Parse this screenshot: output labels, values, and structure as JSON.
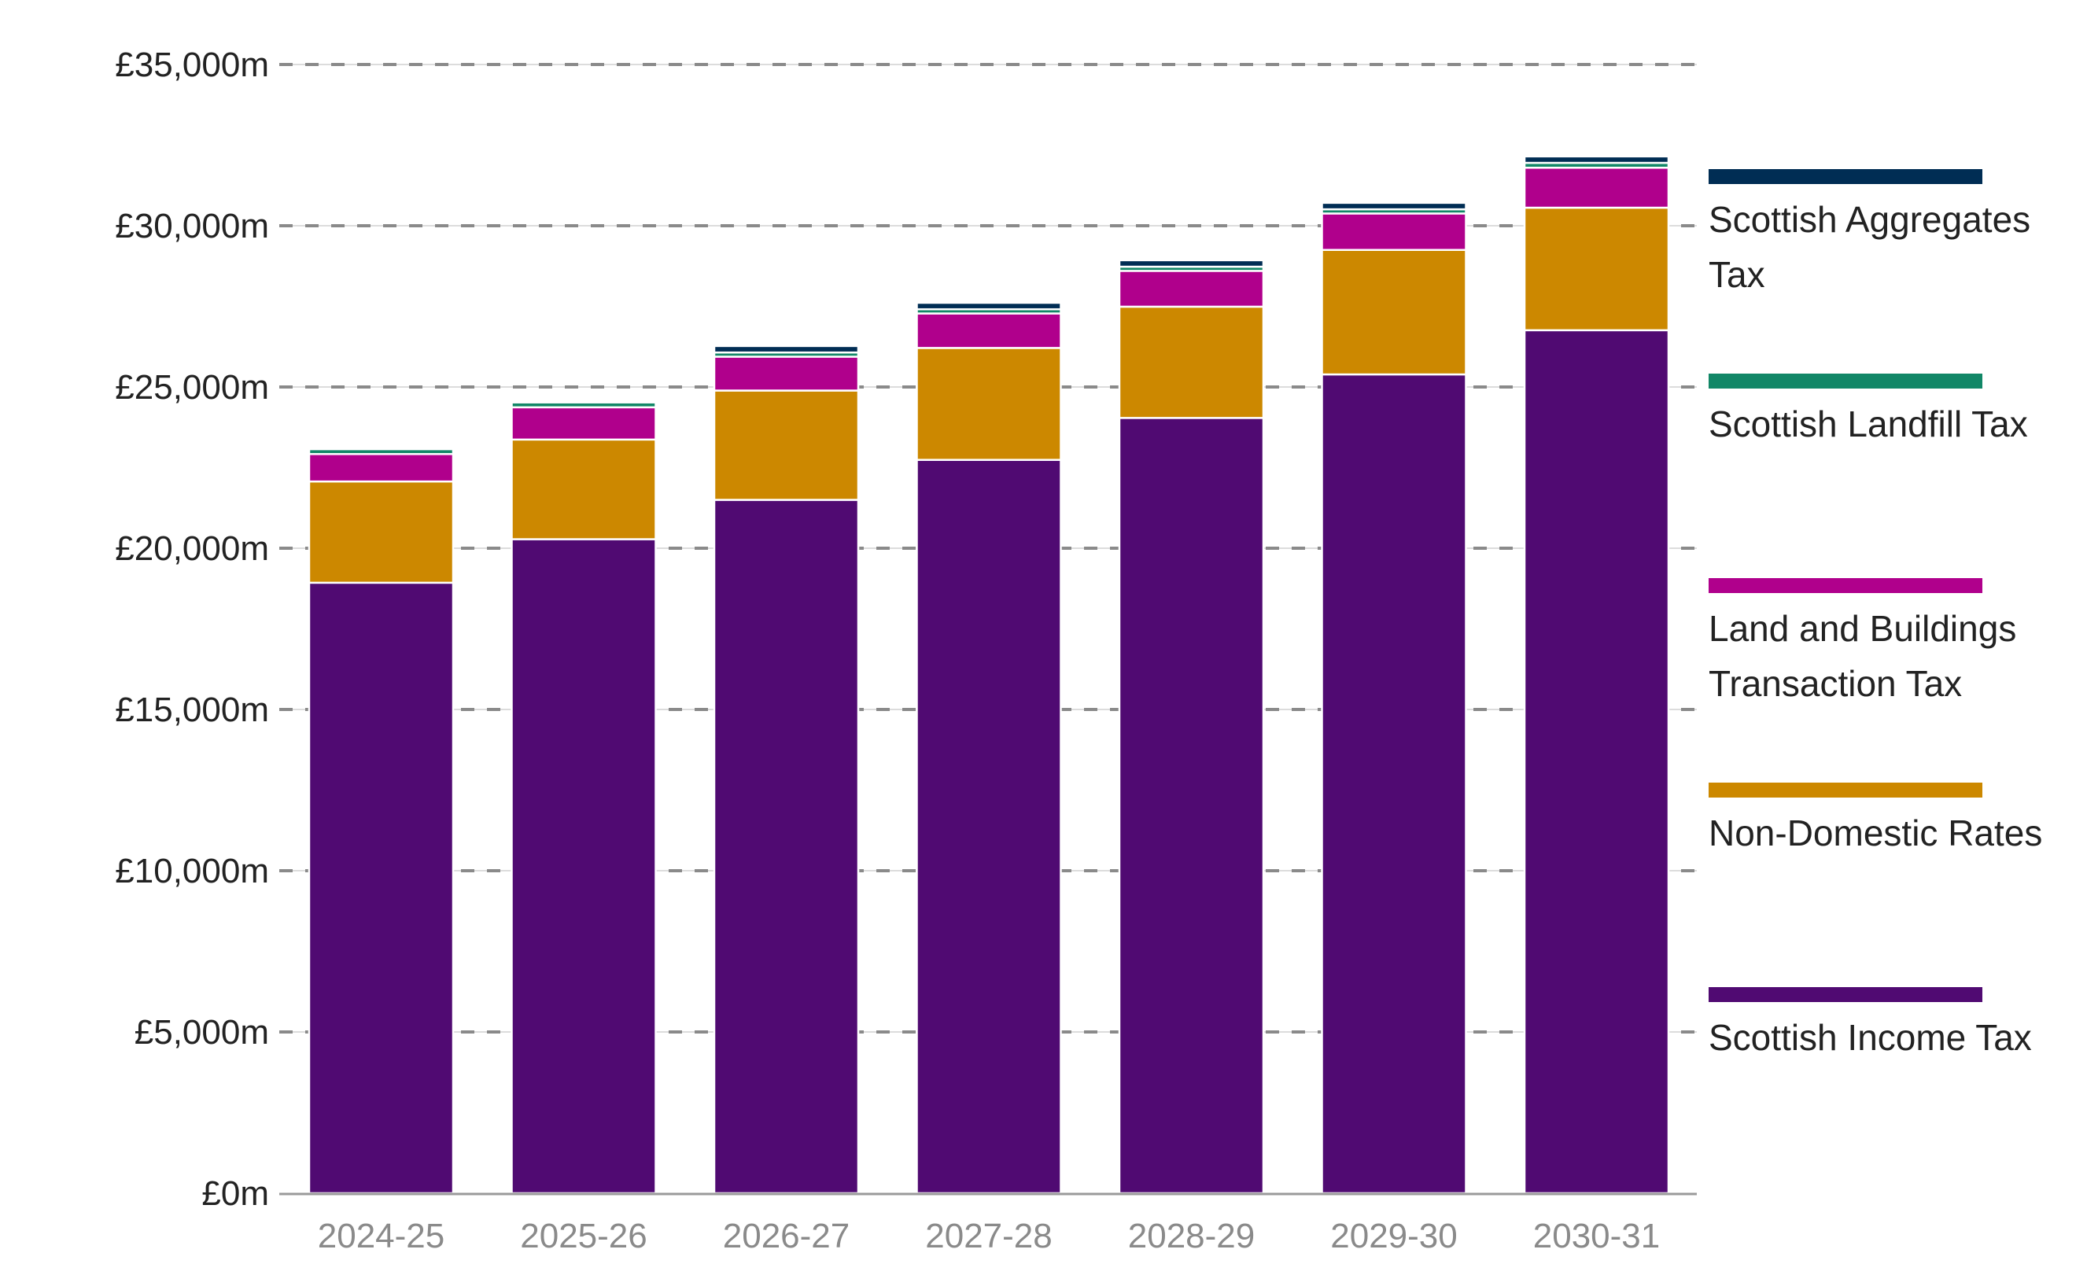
{
  "chart_data": {
    "type": "bar",
    "stacked": true,
    "title": "",
    "xlabel": "",
    "ylabel": "",
    "categories": [
      "2024-25",
      "2025-26",
      "2026-27",
      "2027-28",
      "2028-29",
      "2029-30",
      "2030-31"
    ],
    "ylim": [
      0,
      35000
    ],
    "yticks": [
      0,
      5000,
      10000,
      15000,
      20000,
      25000,
      30000,
      35000
    ],
    "ytick_labels": [
      "£0m",
      "£5,000m",
      "£10,000m",
      "£15,000m",
      "£20,000m",
      "£25,000m",
      "£30,000m",
      "£35,000m"
    ],
    "grid": true,
    "legend_position": "right",
    "series": [
      {
        "name": "Scottish Income Tax",
        "color": "#500a72",
        "values": [
          18930,
          20280,
          21500,
          22740,
          24040,
          25390,
          26760
        ]
      },
      {
        "name": "Non-Domestic Rates",
        "color": "#cc8800",
        "values": [
          3140,
          3090,
          3390,
          3470,
          3450,
          3860,
          3800
        ]
      },
      {
        "name": "Land and Buildings Transaction Tax",
        "color": "#b0008c",
        "values": [
          850,
          1000,
          1050,
          1070,
          1110,
          1130,
          1240
        ]
      },
      {
        "name": "Scottish Landfill Tax",
        "color": "#128767",
        "values": [
          150,
          150,
          130,
          130,
          130,
          130,
          150
        ]
      },
      {
        "name": "Scottish Aggregates Tax",
        "color": "#002d54",
        "values": [
          0,
          0,
          200,
          200,
          200,
          200,
          200
        ]
      }
    ],
    "legend_lines": [
      [
        "Scottish Aggregates",
        "Tax"
      ],
      [
        "Scottish Landfill Tax"
      ],
      [
        "Land and Buildings",
        "Transaction Tax"
      ],
      [
        "Non-Domestic Rates"
      ],
      [
        "Scottish Income Tax"
      ]
    ]
  }
}
